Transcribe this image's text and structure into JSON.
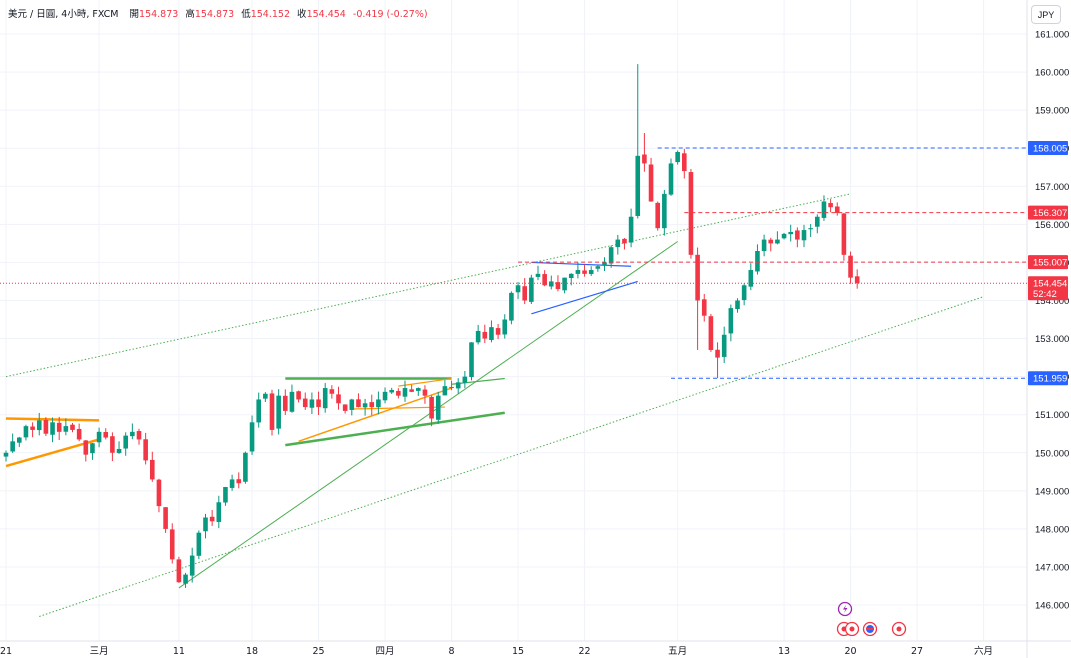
{
  "header": {
    "symbol": "美元 / 日圓, 4小時, FXCM",
    "open_label": "開",
    "open": "154.873",
    "high_label": "高",
    "high": "154.873",
    "low_label": "低",
    "low": "154.152",
    "close_label": "收",
    "close": "154.454",
    "change": "-0.419 (-0.27%)"
  },
  "currency_button": "JPY",
  "colors": {
    "up": "#089981",
    "down": "#f23645",
    "blue": "#2962ff",
    "orange": "#ff9800",
    "green": "#4caf50",
    "grid": "#f0f3fa",
    "axis_text": "#131722"
  },
  "chart_data": {
    "type": "candlestick",
    "y_ticks": [
      161,
      160,
      159,
      158,
      157,
      156,
      155,
      154,
      153,
      152,
      151,
      150,
      149,
      148,
      147,
      146
    ],
    "x_ticks": [
      {
        "label": "21",
        "i": 0
      },
      {
        "label": "三月",
        "i": 14
      },
      {
        "label": "11",
        "i": 26
      },
      {
        "label": "18",
        "i": 37
      },
      {
        "label": "25",
        "i": 47
      },
      {
        "label": "四月",
        "i": 57
      },
      {
        "label": "8",
        "i": 67
      },
      {
        "label": "15",
        "i": 77
      },
      {
        "label": "22",
        "i": 87
      },
      {
        "label": "五月",
        "i": 101
      },
      {
        "label": "13",
        "i": 117
      },
      {
        "label": "20",
        "i": 127
      },
      {
        "label": "27",
        "i": 137
      },
      {
        "label": "六月",
        "i": 147
      }
    ],
    "price_labels": [
      {
        "value": 158.005,
        "text": "158.005",
        "color": "#2962ff"
      },
      {
        "value": 156.307,
        "text": "156.307",
        "color": "#f23645"
      },
      {
        "value": 155.007,
        "text": "155.007",
        "color": "#f23645"
      },
      {
        "value": 154.454,
        "text": "154.454",
        "sub": "52:42",
        "color": "#f23645"
      },
      {
        "value": 151.959,
        "text": "151.959",
        "color": "#2962ff"
      }
    ],
    "closes": [
      150.0,
      150.3,
      150.4,
      150.7,
      150.6,
      150.85,
      150.5,
      150.8,
      150.55,
      150.7,
      150.6,
      150.35,
      149.95,
      150.25,
      150.55,
      150.4,
      150.0,
      150.1,
      150.45,
      150.55,
      150.35,
      149.8,
      149.3,
      148.6,
      148.0,
      147.2,
      146.6,
      146.8,
      147.3,
      147.9,
      148.3,
      148.2,
      148.7,
      149.1,
      149.3,
      149.2,
      150.0,
      150.8,
      151.4,
      151.55,
      150.6,
      151.5,
      151.1,
      151.6,
      151.4,
      151.2,
      151.4,
      151.2,
      151.7,
      151.55,
      151.3,
      151.1,
      151.4,
      151.2,
      151.3,
      151.2,
      151.4,
      151.6,
      151.65,
      151.5,
      151.7,
      151.6,
      151.7,
      151.5,
      150.9,
      151.5,
      151.75,
      151.7,
      151.85,
      152.0,
      152.9,
      153.2,
      153.0,
      153.3,
      153.1,
      153.5,
      154.2,
      154.4,
      154.0,
      154.6,
      154.7,
      154.4,
      154.5,
      154.3,
      154.6,
      154.7,
      154.8,
      154.7,
      154.8,
      154.9,
      155.0,
      155.4,
      155.6,
      155.5,
      156.2,
      157.8,
      157.6,
      156.6,
      155.9,
      156.8,
      157.6,
      157.9,
      157.4,
      155.2,
      154.0,
      153.6,
      152.7,
      152.5,
      153.1,
      153.8,
      154.0,
      154.4,
      154.8,
      155.3,
      155.6,
      155.5,
      155.6,
      155.75,
      155.8,
      155.6,
      155.85,
      155.9,
      156.2,
      156.6,
      156.45,
      156.3,
      155.2,
      154.6,
      154.454
    ],
    "highs_special": {
      "95": 160.21,
      "96": 158.4
    }
  },
  "drawings": {
    "channel_upper": {
      "from": [
        0,
        152.0
      ],
      "to": [
        127,
        156.8
      ]
    },
    "channel_lower": {
      "from": [
        5,
        145.7
      ],
      "to": [
        147,
        154.1
      ]
    },
    "trend_support": {
      "from": [
        26,
        146.45
      ],
      "to": [
        101,
        155.55
      ]
    },
    "hlines": [
      {
        "from": 98,
        "to": 150,
        "value": 158.005,
        "color": "#2962ff"
      },
      {
        "from": 102,
        "to": 150,
        "value": 156.307,
        "color": "#f23645"
      },
      {
        "from": 77,
        "to": 150,
        "value": 155.007,
        "color": "#f23645"
      },
      {
        "from": 100,
        "to": 150,
        "value": 151.959,
        "color": "#2962ff"
      }
    ]
  }
}
